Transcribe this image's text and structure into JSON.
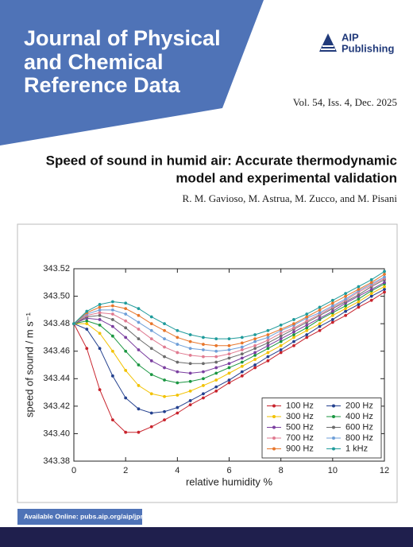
{
  "header": {
    "journal_title": [
      "Journal of Physical",
      "and Chemical",
      "Reference Data"
    ],
    "publisher": [
      "AIP",
      "Publishing"
    ],
    "issue": "Vol. 54, Iss. 4, Dec. 2025"
  },
  "article": {
    "title": [
      "Speed of sound in humid air: Accurate thermodynamic",
      "model and experimental validation"
    ],
    "authors": "R. M. Gavioso, M. Astrua, M. Zucco, and M. Pisani"
  },
  "footer": {
    "link": "Available Online: pubs.aip.org/aip/jpr"
  },
  "chart_data": {
    "type": "line",
    "xlabel": "relative humidity %",
    "ylabel": "speed of sound / m s⁻¹",
    "xlim": [
      0,
      12
    ],
    "xticks": [
      0,
      2,
      4,
      6,
      8,
      10,
      12
    ],
    "ylim": [
      343.38,
      343.52
    ],
    "yticks": [
      343.38,
      {
        "value": 343.4,
        "label": "343.40"
      },
      343.42,
      343.44,
      343.46,
      343.48,
      {
        "value": 343.5,
        "label": "343.50"
      },
      343.52
    ],
    "legend": "lower right",
    "x": [
      0,
      0.5,
      1,
      1.5,
      2,
      2.5,
      3,
      3.5,
      4,
      4.5,
      5,
      5.5,
      6,
      6.5,
      7,
      7.5,
      8,
      8.5,
      9,
      9.5,
      10,
      10.5,
      11,
      11.5,
      12
    ],
    "series": [
      {
        "name": "100 Hz",
        "color": "#c8232c",
        "values": [
          343.48,
          343.462,
          343.432,
          343.41,
          343.401,
          343.401,
          343.405,
          343.41,
          343.415,
          343.421,
          343.426,
          343.431,
          343.437,
          343.442,
          343.448,
          343.453,
          343.459,
          343.464,
          343.47,
          343.475,
          343.481,
          343.486,
          343.492,
          343.497,
          343.503
        ]
      },
      {
        "name": "200 Hz",
        "color": "#23408e",
        "values": [
          343.48,
          343.476,
          343.462,
          343.442,
          343.426,
          343.418,
          343.415,
          343.416,
          343.419,
          343.424,
          343.429,
          343.434,
          343.439,
          343.445,
          343.45,
          343.456,
          343.461,
          343.467,
          343.472,
          343.478,
          343.483,
          343.489,
          343.494,
          343.5,
          343.505
        ]
      },
      {
        "name": "300 Hz",
        "color": "#f2c200",
        "values": [
          343.48,
          343.48,
          343.473,
          343.46,
          343.446,
          343.435,
          343.429,
          343.427,
          343.428,
          343.431,
          343.435,
          343.439,
          343.444,
          343.449,
          343.454,
          343.459,
          343.464,
          343.47,
          343.475,
          343.48,
          343.486,
          343.491,
          343.496,
          343.502,
          343.507
        ]
      },
      {
        "name": "400 Hz",
        "color": "#1a9641",
        "values": [
          343.48,
          343.482,
          343.479,
          343.471,
          343.46,
          343.45,
          343.443,
          343.439,
          343.437,
          343.438,
          343.44,
          343.444,
          343.448,
          343.452,
          343.457,
          343.462,
          343.467,
          343.472,
          343.477,
          343.483,
          343.488,
          343.493,
          343.498,
          343.504,
          343.509
        ]
      },
      {
        "name": "500 Hz",
        "color": "#7b3fa0",
        "values": [
          343.48,
          343.484,
          343.483,
          343.478,
          343.47,
          343.461,
          343.453,
          343.448,
          343.445,
          343.444,
          343.445,
          343.448,
          343.451,
          343.455,
          343.459,
          343.464,
          343.469,
          343.474,
          343.479,
          343.484,
          343.489,
          343.495,
          343.5,
          343.505,
          343.51
        ]
      },
      {
        "name": "600 Hz",
        "color": "#6b6b6b",
        "values": [
          343.48,
          343.485,
          343.486,
          343.483,
          343.477,
          343.469,
          343.462,
          343.456,
          343.452,
          343.451,
          343.451,
          343.452,
          343.455,
          343.458,
          343.462,
          343.466,
          343.471,
          343.476,
          343.481,
          343.486,
          343.491,
          343.496,
          343.501,
          343.507,
          343.512
        ]
      },
      {
        "name": "700 Hz",
        "color": "#e07b91",
        "values": [
          343.48,
          343.486,
          343.488,
          343.487,
          343.482,
          343.476,
          343.469,
          343.463,
          343.459,
          343.457,
          343.456,
          343.456,
          343.458,
          343.461,
          343.464,
          343.468,
          343.473,
          343.477,
          343.482,
          343.487,
          343.492,
          343.497,
          343.503,
          343.508,
          343.513
        ]
      },
      {
        "name": "800 Hz",
        "color": "#6f9fd8",
        "values": [
          343.48,
          343.487,
          343.49,
          343.49,
          343.487,
          343.481,
          343.475,
          343.469,
          343.465,
          343.462,
          343.461,
          343.46,
          343.461,
          343.463,
          343.467,
          343.47,
          343.475,
          343.479,
          343.484,
          343.488,
          343.493,
          343.498,
          343.504,
          343.509,
          343.514
        ]
      },
      {
        "name": "900 Hz",
        "color": "#e8762b",
        "values": [
          343.48,
          343.488,
          343.492,
          343.493,
          343.491,
          343.486,
          343.48,
          343.475,
          343.47,
          343.467,
          343.465,
          343.464,
          343.464,
          343.466,
          343.469,
          343.472,
          343.476,
          343.48,
          343.485,
          343.49,
          343.495,
          343.5,
          343.505,
          343.51,
          343.516
        ]
      },
      {
        "name": "1 kHz",
        "color": "#1f9b9b",
        "values": [
          343.48,
          343.489,
          343.494,
          343.496,
          343.495,
          343.491,
          343.485,
          343.48,
          343.475,
          343.472,
          343.47,
          343.469,
          343.469,
          343.47,
          343.472,
          343.475,
          343.479,
          343.483,
          343.487,
          343.492,
          343.497,
          343.502,
          343.507,
          343.512,
          343.518
        ]
      }
    ]
  }
}
